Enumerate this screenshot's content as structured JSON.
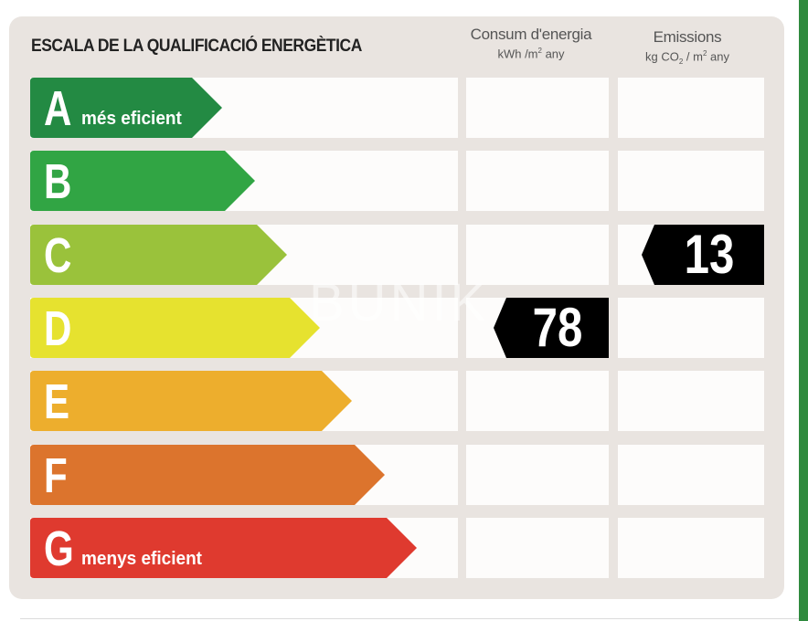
{
  "title": "ESCALA DE LA QUALIFICACIÓ ENERGÈTICA",
  "columns": {
    "consumption": {
      "label": "Consum d'energia",
      "unit_pre": "kWh /m",
      "unit_sup": "2",
      "unit_post": " any"
    },
    "emissions": {
      "label": "Emissions",
      "unit_pre": "kg CO",
      "unit_sub": "2",
      "unit_mid": " / m",
      "unit_sup": "2",
      "unit_post": " any"
    }
  },
  "ratings": [
    {
      "letter": "A",
      "sublabel": "més eficient",
      "color": "#238a43"
    },
    {
      "letter": "B",
      "sublabel": "",
      "color": "#31a544"
    },
    {
      "letter": "C",
      "sublabel": "",
      "color": "#9ac23b"
    },
    {
      "letter": "D",
      "sublabel": "",
      "color": "#e6e22f"
    },
    {
      "letter": "E",
      "sublabel": "",
      "color": "#edae2d"
    },
    {
      "letter": "F",
      "sublabel": "",
      "color": "#dc742d"
    },
    {
      "letter": "G",
      "sublabel": "menys eficient",
      "color": "#df3a2f"
    }
  ],
  "consumption_value": {
    "value": "78",
    "rating": "D"
  },
  "emissions_value": {
    "value": "13",
    "rating": "C"
  },
  "watermark": "BUNIK"
}
